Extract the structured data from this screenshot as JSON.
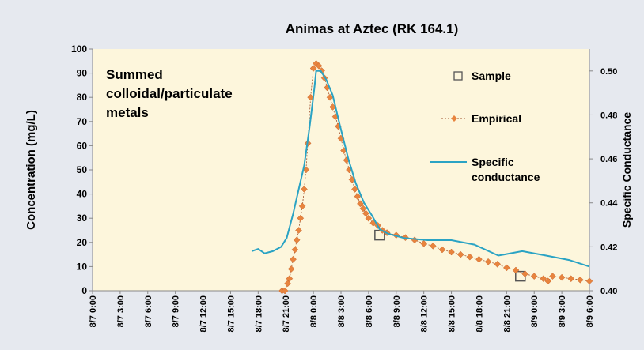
{
  "chart_data": {
    "type": "line",
    "title": "Animas at Aztec (RK 164.1)",
    "ylabel": "Concentration (mg/L)",
    "y2label": "Specific Conductance",
    "annotation_lines": [
      "Summed",
      "colloidal/particulate",
      "metals"
    ],
    "xlim": [
      0,
      54
    ],
    "xticks": [
      {
        "value": 0,
        "label": "8/7 0:00"
      },
      {
        "value": 3,
        "label": "8/7 3:00"
      },
      {
        "value": 6,
        "label": "8/7 6:00"
      },
      {
        "value": 9,
        "label": "8/7 9:00"
      },
      {
        "value": 12,
        "label": "8/7 12:00"
      },
      {
        "value": 15,
        "label": "8/7 15:00"
      },
      {
        "value": 18,
        "label": "8/7 18:00"
      },
      {
        "value": 21,
        "label": "8/7 21:00"
      },
      {
        "value": 24,
        "label": "8/8 0:00"
      },
      {
        "value": 27,
        "label": "8/8 3:00"
      },
      {
        "value": 30,
        "label": "8/8 6:00"
      },
      {
        "value": 33,
        "label": "8/8 9:00"
      },
      {
        "value": 36,
        "label": "8/8 12:00"
      },
      {
        "value": 39,
        "label": "8/8 15:00"
      },
      {
        "value": 42,
        "label": "8/8 18:00"
      },
      {
        "value": 45,
        "label": "8/8 21:00"
      },
      {
        "value": 48,
        "label": "8/9 0:00"
      },
      {
        "value": 51,
        "label": "8/9 3:00"
      },
      {
        "value": 54,
        "label": "8/9 6:00"
      }
    ],
    "ylim": [
      0,
      100
    ],
    "yticks": [
      0,
      10,
      20,
      30,
      40,
      50,
      60,
      70,
      80,
      90,
      100
    ],
    "y2lim": [
      0.4,
      0.51
    ],
    "y2ticks": [
      {
        "value": 0.4,
        "label": "0.40"
      },
      {
        "value": 0.42,
        "label": "0.42"
      },
      {
        "value": 0.44,
        "label": "0.44"
      },
      {
        "value": 0.46,
        "label": "0.46"
      },
      {
        "value": 0.48,
        "label": "0.48"
      },
      {
        "value": 0.5,
        "label": "0.50"
      }
    ],
    "series": [
      {
        "name": "Sample",
        "color": "#555555",
        "marker": "square",
        "x": [
          31.2,
          46.5
        ],
        "values": [
          23,
          6
        ]
      },
      {
        "name": "Empirical",
        "color": "#e8843e",
        "marker": "diamond",
        "x": [
          20.6,
          20.9,
          21.2,
          21.4,
          21.6,
          21.8,
          22.0,
          22.2,
          22.4,
          22.6,
          22.8,
          23.0,
          23.2,
          23.4,
          23.7,
          24.0,
          24.3,
          24.6,
          24.9,
          25.2,
          25.5,
          25.8,
          26.1,
          26.4,
          26.7,
          27.0,
          27.3,
          27.6,
          27.9,
          28.2,
          28.5,
          28.8,
          29.1,
          29.4,
          29.7,
          30.0,
          30.5,
          31.0,
          31.5,
          32.0,
          33,
          34,
          35,
          36,
          37,
          38,
          39,
          40,
          41,
          42,
          43,
          44,
          45,
          46,
          47,
          48,
          49,
          49.5,
          50,
          51,
          52,
          53,
          54
        ],
        "values": [
          0,
          0,
          3,
          5,
          9,
          13,
          17,
          21,
          25,
          30,
          35,
          42,
          50,
          61,
          80,
          92,
          94,
          93,
          91,
          88,
          84,
          80,
          76,
          72,
          68,
          63,
          58,
          54,
          50,
          46,
          42,
          39,
          36,
          34,
          32,
          30,
          28,
          27,
          25,
          24,
          23,
          22,
          21,
          19.5,
          18.5,
          17,
          16,
          15,
          14,
          13,
          12,
          11,
          9.5,
          8.5,
          7,
          6,
          5,
          4,
          6,
          5.5,
          5,
          4.5,
          4
        ]
      },
      {
        "name": "Specific conductance",
        "color": "#2aa3c4",
        "axis": "y2",
        "x": [
          17.3,
          18.0,
          18.7,
          19.6,
          20.5,
          21.1,
          21.8,
          22.4,
          23.0,
          23.6,
          24.1,
          24.3,
          24.8,
          25.4,
          26.1,
          26.9,
          27.8,
          28.6,
          29.5,
          30.4,
          31.2,
          32.1,
          33.8,
          36.4,
          39.0,
          41.5,
          44.1,
          46.7,
          49.3,
          51.8,
          54.0
        ],
        "values": [
          0.418,
          0.419,
          0.417,
          0.418,
          0.42,
          0.424,
          0.435,
          0.446,
          0.457,
          0.475,
          0.492,
          0.5,
          0.5,
          0.496,
          0.489,
          0.475,
          0.46,
          0.449,
          0.44,
          0.434,
          0.428,
          0.426,
          0.424,
          0.423,
          0.423,
          0.421,
          0.416,
          0.418,
          0.416,
          0.414,
          0.411
        ]
      }
    ]
  }
}
